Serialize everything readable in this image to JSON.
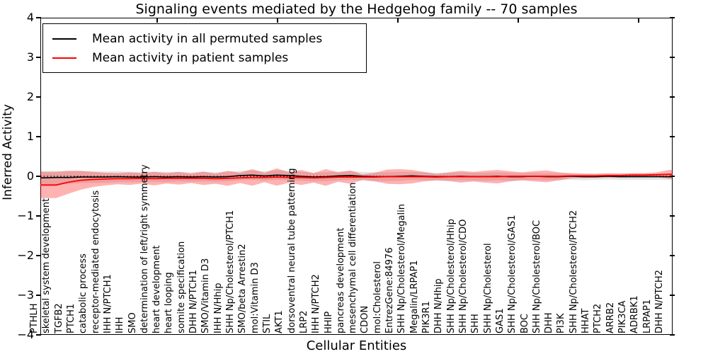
{
  "colors": {
    "background": "#ffffff",
    "permuted_line": "#000000",
    "patient_line": "#ff0000",
    "permuted_band": "rgba(0,0,0,0.10)",
    "patient_band": "rgba(255,0,0,0.30)",
    "axis": "#000000"
  },
  "chart_data": {
    "type": "line",
    "title": "Signaling events mediated by the Hedgehog family -- 70 samples",
    "xlabel": "Cellular Entities",
    "ylabel": "Inferred Activity",
    "ylim": [
      -4,
      4
    ],
    "yticks": [
      -4,
      -3,
      -2,
      -1,
      0,
      1,
      2,
      3,
      4
    ],
    "xticks": [
      10,
      20,
      30,
      40,
      50
    ],
    "grid": false,
    "legend_position": "upper left",
    "zero_reference_line": true,
    "categories": [
      "PTHLH",
      "skeletal system development",
      "TGFB2",
      "PTCH1",
      "catabolic process",
      "receptor-mediated endocytosis",
      "IHH N/PTCH1",
      "IHH",
      "SMO",
      "determination of left/right symmetry",
      "heart development",
      "heart looping",
      "somite specification",
      "DHH N/PTCH1",
      "SMO/Vitamin D3",
      "IHH N/Hhip",
      "SHH Np/Cholesterol/PTCH1",
      "SMO/beta Arrestin2",
      "mol:Vitamin D3",
      "STIL",
      "AKT1",
      "dorsoventral neural tube patterning",
      "LRP2",
      "IHH N/PTCH2",
      "HHIP",
      "pancreas development",
      "mesenchymal cell differentiation",
      "CDON",
      "mol:Cholesterol",
      "EntrezGene:84976",
      "SHH Np/Cholesterol/Megalin",
      "Megalin/LRPAP1",
      "PIK3R1",
      "DHH N/Hhip",
      "SHH Np/Cholesterol/Hhip",
      "SHH Np/Cholesterol/CDO",
      "SHH",
      "SHH Np/Cholesterol",
      "GAS1",
      "SHH Np/Cholesterol/GAS1",
      "BOC",
      "SHH Np/Cholesterol/BOC",
      "DHH",
      "PI3K",
      "SHH Np/Cholesterol/PTCH2",
      "HHAT",
      "PTCH2",
      "ARRB2",
      "PIK3CA",
      "ADRBK1",
      "LRPAP1",
      "DHH N/PTCH2"
    ],
    "series": [
      {
        "name": "Mean activity in all permuted samples",
        "color": "#000000",
        "values": [
          -0.04,
          -0.03,
          -0.03,
          -0.02,
          -0.02,
          -0.02,
          -0.01,
          -0.02,
          -0.02,
          -0.01,
          -0.02,
          -0.01,
          -0.02,
          -0.01,
          -0.02,
          -0.01,
          0.02,
          0.03,
          0.01,
          0.03,
          0.02,
          0.0,
          -0.02,
          -0.01,
          0.01,
          0.02,
          0.0,
          -0.01,
          -0.01,
          0.0,
          0.01,
          0.0,
          -0.01,
          -0.01,
          0.0,
          -0.01,
          -0.01,
          0.0,
          -0.01,
          -0.01,
          0.0,
          -0.01,
          -0.01,
          0.0,
          -0.01,
          -0.01,
          0.0,
          -0.01,
          -0.01,
          -0.01,
          -0.01,
          -0.01
        ],
        "band_halfwidth": [
          0.18,
          0.17,
          0.16,
          0.15,
          0.15,
          0.14,
          0.14,
          0.13,
          0.13,
          0.13,
          0.13,
          0.12,
          0.12,
          0.12,
          0.12,
          0.12,
          0.12,
          0.12,
          0.12,
          0.12,
          0.12,
          0.11,
          0.11,
          0.11,
          0.11,
          0.11,
          0.11,
          0.11,
          0.11,
          0.11,
          0.1,
          0.1,
          0.1,
          0.1,
          0.1,
          0.1,
          0.1,
          0.1,
          0.1,
          0.09,
          0.09,
          0.09,
          0.09,
          0.09,
          0.09,
          0.08,
          0.08,
          0.08,
          0.08,
          0.08,
          0.08,
          0.08
        ]
      },
      {
        "name": "Mean activity in patient samples",
        "color": "#ff0000",
        "values": [
          -0.22,
          -0.22,
          -0.15,
          -0.1,
          -0.08,
          -0.07,
          -0.06,
          -0.06,
          -0.05,
          -0.06,
          -0.05,
          -0.05,
          -0.05,
          -0.05,
          -0.06,
          -0.05,
          -0.04,
          -0.03,
          -0.03,
          -0.02,
          -0.03,
          -0.03,
          -0.04,
          -0.03,
          -0.02,
          -0.02,
          -0.02,
          -0.02,
          -0.01,
          -0.01,
          -0.01,
          -0.01,
          -0.02,
          -0.01,
          -0.01,
          -0.01,
          -0.01,
          -0.01,
          0.0,
          0.0,
          0.0,
          0.0,
          0.0,
          0.01,
          0.01,
          0.01,
          0.02,
          0.02,
          0.03,
          0.03,
          0.04,
          0.05
        ],
        "band_halfwidth": [
          0.33,
          0.33,
          0.29,
          0.24,
          0.19,
          0.16,
          0.14,
          0.16,
          0.13,
          0.17,
          0.13,
          0.16,
          0.12,
          0.17,
          0.13,
          0.19,
          0.13,
          0.21,
          0.12,
          0.22,
          0.13,
          0.19,
          0.12,
          0.21,
          0.12,
          0.17,
          0.07,
          0.11,
          0.18,
          0.19,
          0.17,
          0.12,
          0.08,
          0.11,
          0.15,
          0.12,
          0.15,
          0.17,
          0.13,
          0.1,
          0.13,
          0.15,
          0.1,
          0.06,
          0.05,
          0.05,
          0.05,
          0.05,
          0.05,
          0.05,
          0.06,
          0.11
        ]
      }
    ]
  }
}
